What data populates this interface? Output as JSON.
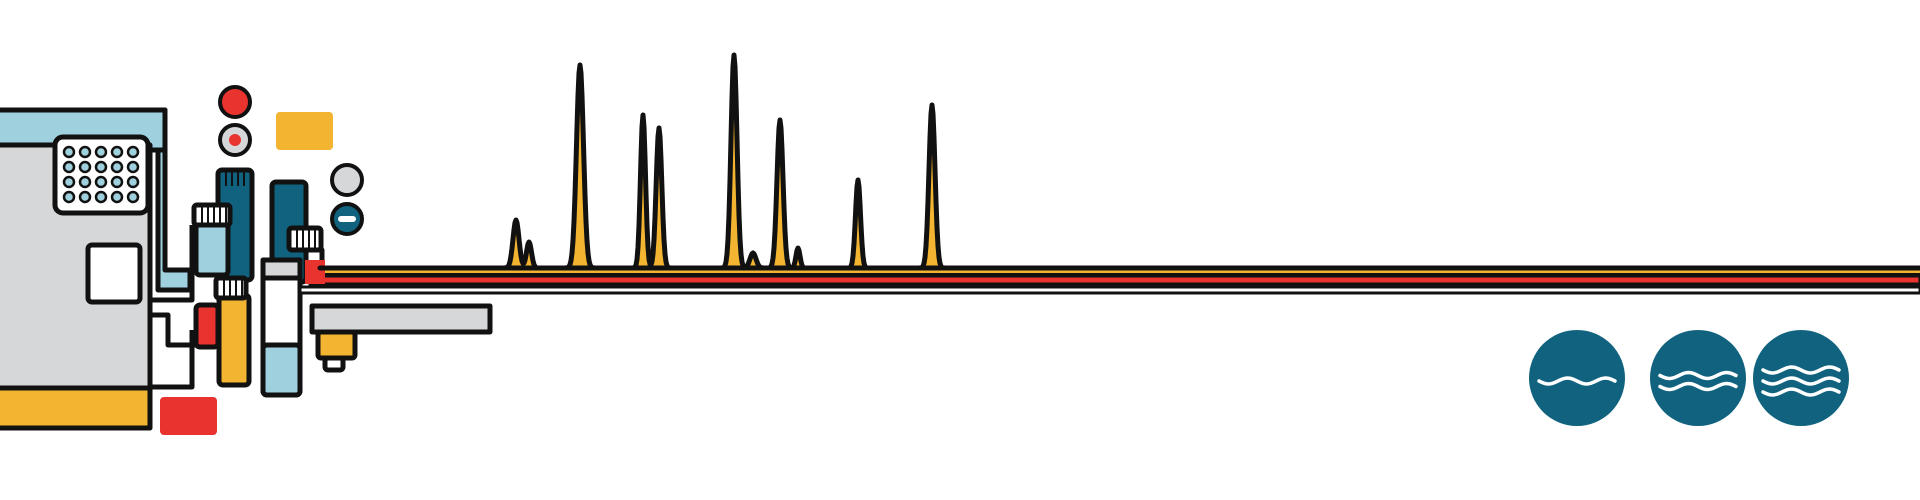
{
  "colors": {
    "light_blue": "#9fd0dd",
    "grey": "#d6d7d9",
    "yellow": "#f2b431",
    "red": "#e8332f",
    "teal": "#10627e",
    "outline": "#111111"
  },
  "icons": {
    "instrument": "hplc-instrument-icon",
    "chromatogram": "chromatogram-peaks-icon",
    "wave_levels": [
      "wave-one-icon",
      "wave-two-icon",
      "wave-three-icon"
    ]
  }
}
